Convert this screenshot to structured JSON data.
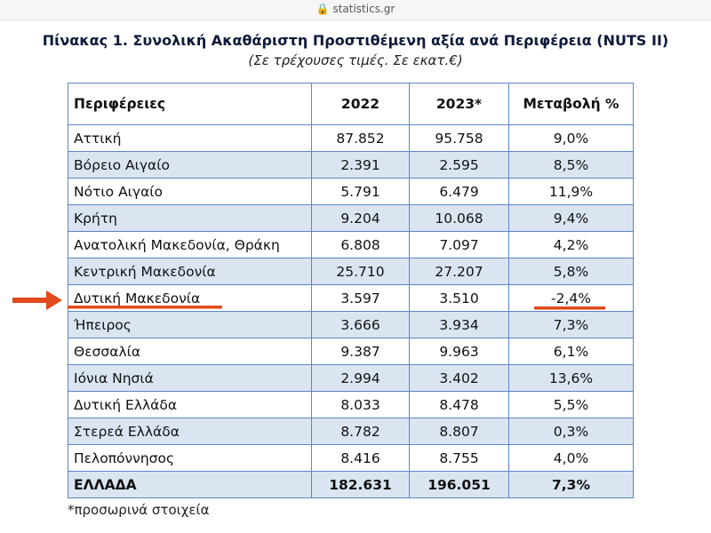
{
  "browser": {
    "url": "statistics.gr"
  },
  "header": {
    "title": "Πίνακας 1. Συνολική Ακαθάριστη Προστιθέμενη αξία ανά  Περιφέρεια (NUTS II)",
    "subtitle": "(Σε τρέχουσες τιμές. Σε εκατ.€)"
  },
  "table": {
    "columns": [
      "Περιφέρειες",
      "2022",
      "2023*",
      "Μεταβολή %"
    ],
    "rows": [
      [
        "Αττική",
        "87.852",
        "95.758",
        "9,0%"
      ],
      [
        "Βόρειο Αιγαίο",
        "2.391",
        "2.595",
        "8,5%"
      ],
      [
        "Νότιο Αιγαίο",
        "5.791",
        "6.479",
        "11,9%"
      ],
      [
        "Κρήτη",
        "9.204",
        "10.068",
        "9,4%"
      ],
      [
        "Ανατολική Μακεδονία, Θράκη",
        "6.808",
        "7.097",
        "4,2%"
      ],
      [
        "Κεντρική Μακεδονία",
        "25.710",
        "27.207",
        "5,8%"
      ],
      [
        "Δυτική Μακεδονία",
        "3.597",
        "3.510",
        "-2,4%"
      ],
      [
        "Ήπειρος",
        "3.666",
        "3.934",
        "7,3%"
      ],
      [
        "Θεσσαλία",
        "9.387",
        "9.963",
        "6,1%"
      ],
      [
        "Ιόνια Νησιά",
        "2.994",
        "3.402",
        "13,6%"
      ],
      [
        "Δυτική Ελλάδα",
        "8.033",
        "8.478",
        "5,5%"
      ],
      [
        "Στερεά Ελλάδα",
        "8.782",
        "8.807",
        "0,3%"
      ],
      [
        "Πελοπόννησος",
        "8.416",
        "8.755",
        "4,0%"
      ],
      [
        "ΕΛΛΑΔΑ",
        "182.631",
        "196.051",
        "7,3%"
      ]
    ],
    "footnote": "*προσωρινά στοιχεία"
  }
}
